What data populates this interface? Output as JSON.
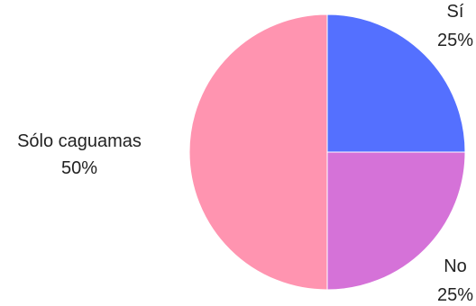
{
  "chart_data": {
    "type": "pie",
    "title": "",
    "start_angle": "12 o'clock",
    "direction": "clockwise",
    "slices": [
      {
        "label": "Sí",
        "value": 25,
        "percent_label": "25%",
        "color": "#5470ff"
      },
      {
        "label": "No",
        "value": 25,
        "percent_label": "25%",
        "color": "#d572d8"
      },
      {
        "label": "Sólo caguamas",
        "value": 50,
        "percent_label": "50%",
        "color": "#ff94b0"
      }
    ]
  }
}
